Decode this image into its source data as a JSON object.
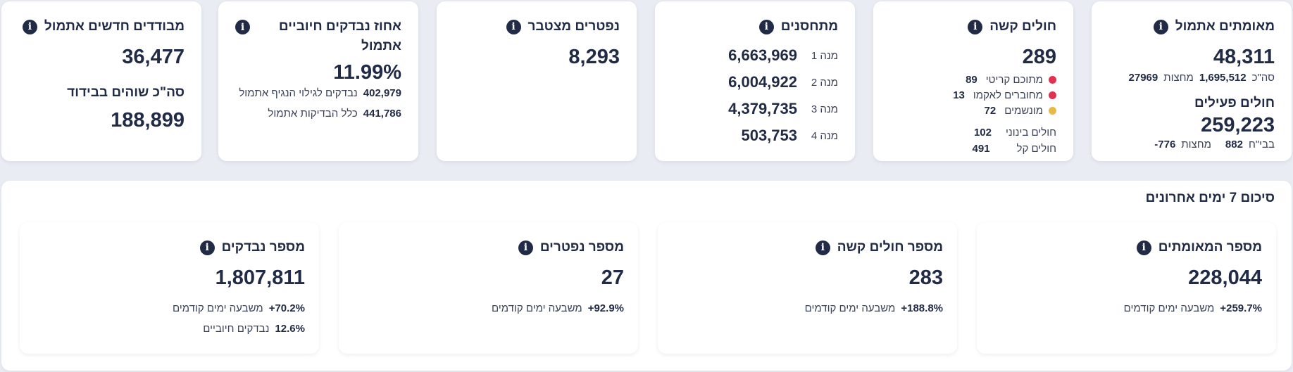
{
  "cards": {
    "verified": {
      "title": "מאומתים אתמול",
      "value": "48,311",
      "line1_num1": "27969",
      "line1_label1": "מחצות",
      "line1_num2": "1,695,512",
      "line1_label2": "סה\"כ",
      "active_title": "חולים פעילים",
      "active_value": "259,223",
      "line2_num1": "-776",
      "line2_label1": "מחצות",
      "line2_num2": "882",
      "line2_label2": "בבי\"ח"
    },
    "severe": {
      "title": "חולים קשה",
      "value": "289",
      "items": [
        {
          "label": "מתוכם קריטי",
          "value": "89",
          "color": "#e03250"
        },
        {
          "label": "מחוברים לאקמו",
          "value": "13",
          "color": "#e03250"
        },
        {
          "label": "מונשמים",
          "value": "72",
          "color": "#e8b84a"
        }
      ],
      "moderate_label": "חולים בינוני",
      "moderate_value": "102",
      "mild_label": "חולים קל",
      "mild_value": "491"
    },
    "vaccinated": {
      "title": "מתחסנים",
      "doses": [
        {
          "label": "מנה 1",
          "value": "6,663,969"
        },
        {
          "label": "מנה 2",
          "value": "6,004,922"
        },
        {
          "label": "מנה 3",
          "value": "4,379,735"
        },
        {
          "label": "מנה 4",
          "value": "503,753"
        }
      ]
    },
    "deaths": {
      "title": "נפטרים מצטבר",
      "value": "8,293"
    },
    "positive_pct": {
      "title": "אחוז נבדקים חיוביים אתמול",
      "value": "11.99%",
      "line1_num": "402,979",
      "line1_label": "נבדקים לגילוי הנגיף אתמול",
      "line2_num": "441,786",
      "line2_label": "כלל הבדיקות אתמול"
    },
    "isolated": {
      "title": "מבודדים חדשים אתמול",
      "value": "36,477",
      "total_title": "סה\"כ שוהים בבידוד",
      "total_value": "188,899"
    }
  },
  "summary": {
    "title": "סיכום 7 ימים אחרונים",
    "cards": [
      {
        "title": "מספר המאומתים",
        "value": "228,044",
        "change": "+259.7%",
        "change_label": "משבעה ימים קודמים"
      },
      {
        "title": "מספר חולים קשה",
        "value": "283",
        "change": "+188.8%",
        "change_label": "משבעה ימים קודמים"
      },
      {
        "title": "מספר נפטרים",
        "value": "27",
        "change": "+92.9%",
        "change_label": "משבעה ימים קודמים"
      },
      {
        "title": "מספר נבדקים",
        "value": "1,807,811",
        "change": "+70.2%",
        "change_label": "משבעה ימים קודמים",
        "extra": "12.6%",
        "extra_label": "נבדקים חיוביים"
      }
    ]
  },
  "info_glyph": "i"
}
